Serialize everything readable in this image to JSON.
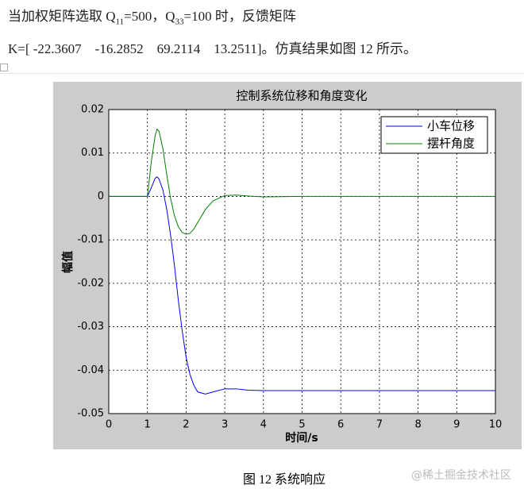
{
  "document": {
    "line1": [
      "当加权矩阵选取 Q",
      "11",
      "=500，Q",
      "33",
      "=100 时，反馈矩阵"
    ],
    "line2": "K=[ -22.3607    -16.2852    69.2114    13.2511]。仿真结果如图 12 所示。",
    "caption": "图 12  系统响应",
    "watermark": "@稀土掘金技术社区"
  },
  "chart_data": {
    "type": "line",
    "title": "控制系统位移和角度变化",
    "xlabel": "时间/s",
    "ylabel": "幅值",
    "x": [
      0,
      1,
      1.1,
      1.2,
      1.25,
      1.3,
      1.4,
      1.5,
      1.6,
      1.7,
      1.8,
      1.9,
      2,
      2.1,
      2.2,
      2.3,
      2.5,
      2.7,
      3,
      3.3,
      3.6,
      4,
      5,
      10
    ],
    "series": [
      {
        "name": "小车位移",
        "color": "#0000ff",
        "values": [
          0,
          0,
          0.002,
          0.0042,
          0.0045,
          0.004,
          0.0015,
          -0.003,
          -0.009,
          -0.016,
          -0.024,
          -0.031,
          -0.037,
          -0.041,
          -0.0435,
          -0.045,
          -0.0455,
          -0.045,
          -0.0443,
          -0.0443,
          -0.0446,
          -0.0447,
          -0.0447,
          -0.0447
        ]
      },
      {
        "name": "摆杆角度",
        "color": "#008000",
        "values": [
          0,
          0,
          0.008,
          0.014,
          0.0155,
          0.015,
          0.011,
          0.005,
          -0.0005,
          -0.0045,
          -0.007,
          -0.0083,
          -0.0087,
          -0.0085,
          -0.0075,
          -0.006,
          -0.003,
          -0.001,
          0.0002,
          0.0003,
          0.0001,
          -0.0001,
          0,
          0
        ]
      }
    ],
    "xlim": [
      0,
      10
    ],
    "xticks": [
      0,
      1,
      2,
      3,
      4,
      5,
      6,
      7,
      8,
      9,
      10
    ],
    "ylim": [
      -0.05,
      0.02
    ],
    "yticks": [
      -0.05,
      -0.04,
      -0.03,
      -0.02,
      -0.01,
      0,
      0.01,
      0.02
    ],
    "grid": true,
    "legend": "upper right"
  }
}
